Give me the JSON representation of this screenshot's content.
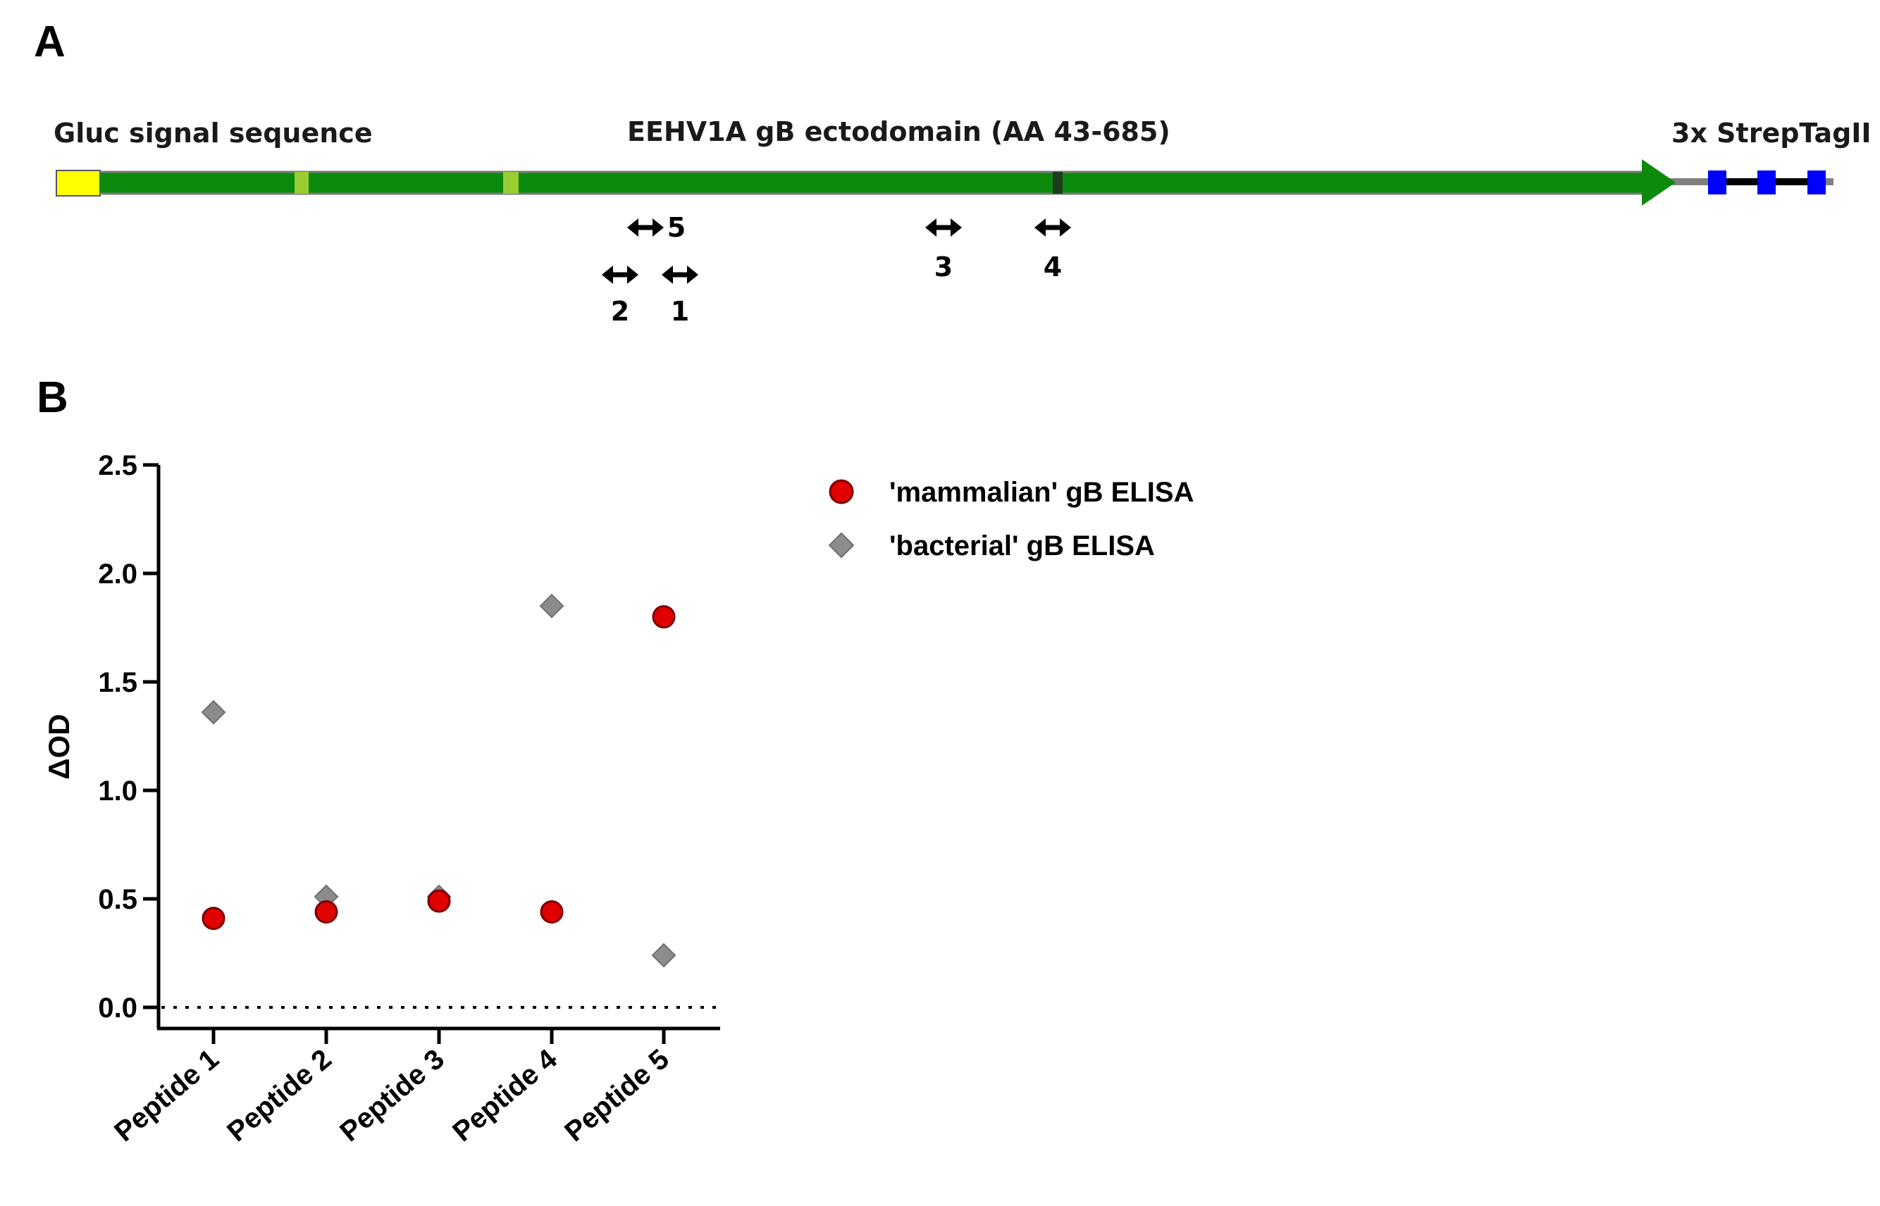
{
  "panels": {
    "a_letter": "A",
    "b_letter": "B"
  },
  "diagram": {
    "signal_label": "Gluc signal sequence",
    "ectodomain_label": "EEHV1A gB ectodomain (AA 43-685)",
    "tag_label": "3x StrepTagII",
    "colors": {
      "signal": "#ffff00",
      "ectodomain": "#0b8a0b",
      "light_marker": "#9acd32",
      "dark_marker": "#1e3b1e",
      "linker": "#808080",
      "tag": "#0000ff"
    },
    "peptide_markers": [
      {
        "id": "5",
        "label": "5"
      },
      {
        "id": "2",
        "label": "2"
      },
      {
        "id": "1",
        "label": "1"
      },
      {
        "id": "3",
        "label": "3"
      },
      {
        "id": "4",
        "label": "4"
      }
    ]
  },
  "chart_data": {
    "type": "scatter",
    "title": "",
    "xlabel": "",
    "ylabel": "ΔOD",
    "ylim": [
      0,
      2.5
    ],
    "yticks": [
      0.0,
      0.5,
      1.0,
      1.5,
      2.0,
      2.5
    ],
    "ytick_labels": [
      "0.0",
      "0.5",
      "1.0",
      "1.5",
      "2.0",
      "2.5"
    ],
    "baseline": 0.0,
    "baseline_style": "dotted",
    "legend_position": "top-right",
    "categories": [
      "Peptide 1",
      "Peptide 2",
      "Peptide 3",
      "Peptide 4",
      "Peptide 5"
    ],
    "series": [
      {
        "name": "'mammalian' gB ELISA",
        "marker": "circle",
        "color": "#e00000",
        "values": [
          0.41,
          0.44,
          0.49,
          0.44,
          1.8
        ]
      },
      {
        "name": "'bacterial' gB ELISA",
        "marker": "diamond",
        "color": "#8c8c8c",
        "values": [
          1.36,
          0.51,
          0.51,
          1.85,
          0.24
        ]
      }
    ]
  }
}
